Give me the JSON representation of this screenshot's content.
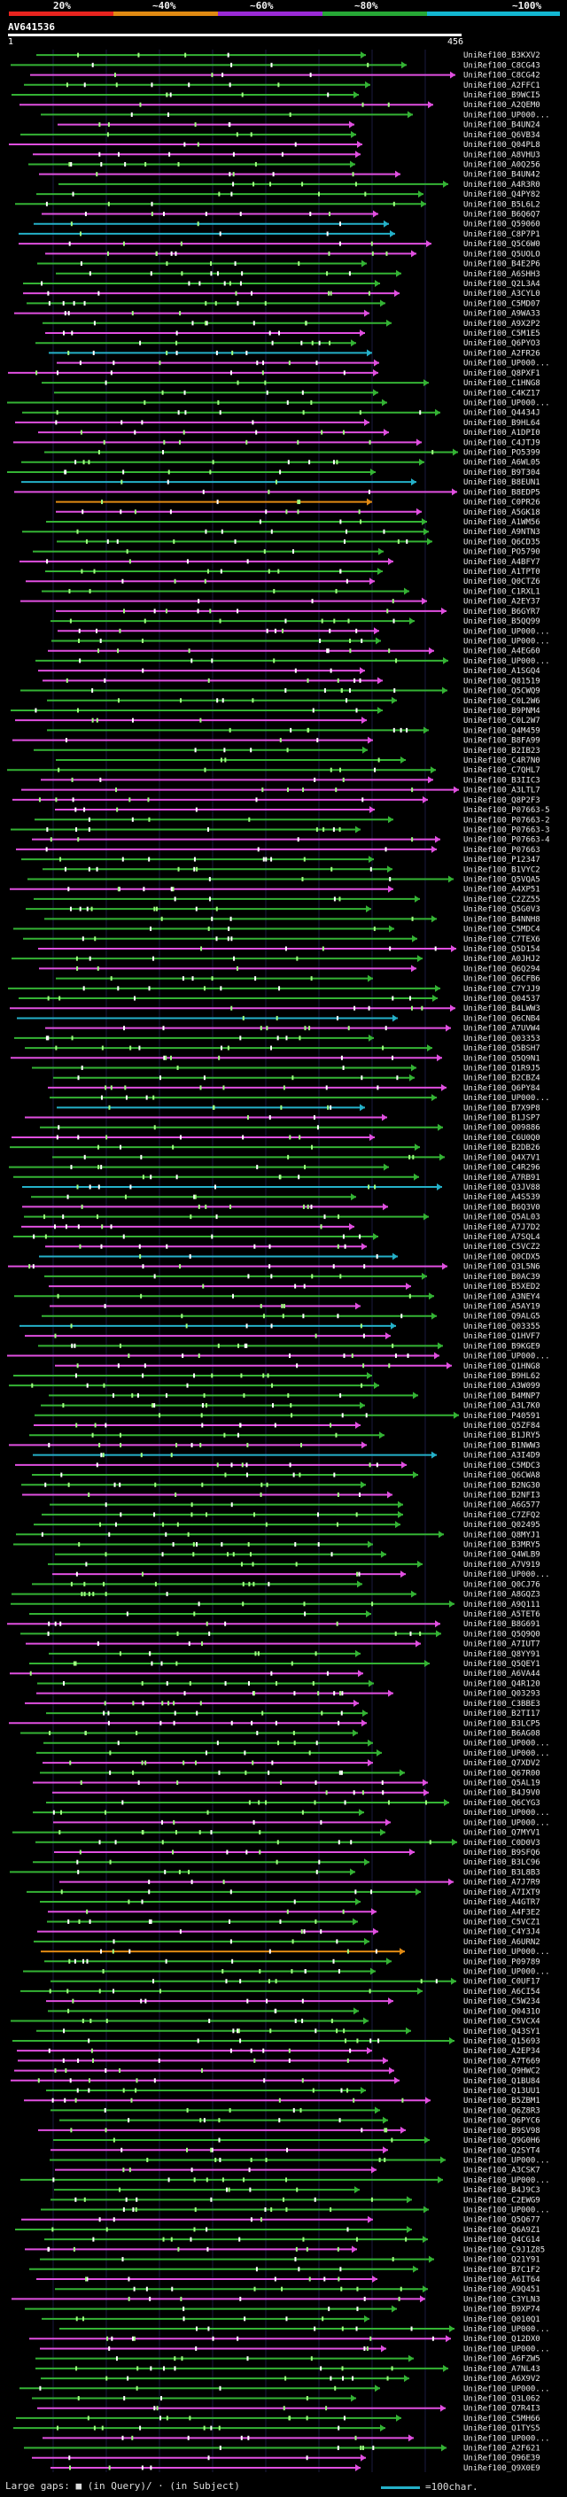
{
  "legend": {
    "ticks": [
      "20%",
      "~40%",
      "~60%",
      "~80%",
      "~100%"
    ],
    "colors": [
      "#e8241f",
      "#e08a13",
      "#9a2ad6",
      "#27a836",
      "#13b7d2"
    ]
  },
  "query": {
    "name": "AV641536",
    "start": "1",
    "end": "456"
  },
  "colors": {
    "pink": "#e04fe0",
    "green": "#34b334",
    "cyan": "#24b0c8",
    "orange": "#e08a13",
    "light_green": "#a0ff80",
    "white": "#ffffff"
  },
  "hits": [
    "UniRef100_B3KXV2",
    "UniRef100_C8CG43",
    "UniRef100_C8CG42",
    "UniRef100_A2FFC1",
    "UniRef100_B9WCI5",
    "UniRef100_A2QEM0",
    "UniRef100_UP000...",
    "UniRef100_B4UN24",
    "UniRef100_Q6VB34",
    "UniRef100_Q04PL8",
    "UniRef100_A8VHU3",
    "UniRef100_A0Q256",
    "UniRef100_B4UN42",
    "UniRef100_A4R3R0",
    "UniRef100_Q4PY82",
    "UniRef100_B5L6L2",
    "UniRef100_B6Q6Q7",
    "UniRef100_Q59060",
    "UniRef100_C8P7P1",
    "UniRef100_Q5C6W0",
    "UniRef100_Q5UOLO",
    "UniRef100_B4E2P6",
    "UniRef100_A6SHH3",
    "UniRef100_Q2L3A4",
    "UniRef100_A3CYL0",
    "UniRef100_C5MD07",
    "UniRef100_A9WA33",
    "UniRef100_A9X2P2",
    "UniRef100_C5M1E5",
    "UniRef100_Q6PYO3",
    "UniRef100_A2FR26",
    "UniRef100_UP000...",
    "UniRef100_Q8PXF1",
    "UniRef100_C1HNG8",
    "UniRef100_C4KZ17",
    "UniRef100_UP000...",
    "UniRef100_Q4434J",
    "UniRef100_B9HL64",
    "UniRef100_A1DPI0",
    "UniRef100_C4JTJ9",
    "UniRef100_PO5399",
    "UniRef100_A6WL05",
    "UniRef100_B9T304",
    "UniRef100_B8EUN1",
    "UniRef100_B8EDP5",
    "UniRef100_C0PR26",
    "UniRef100_A5GK18",
    "UniRef100_A1WM56",
    "UniRef100_A9NTN3",
    "UniRef100_Q6CD35",
    "UniRef100_PO5790",
    "UniRef100_A4BFY7",
    "UniRef100_A1TPT0",
    "UniRef100_Q0CTZ6",
    "UniRef100_C1RXL1",
    "UniRef100_A2EY37",
    "UniRef100_B6GYR7",
    "UniRef100_B5QQ99",
    "UniRef100_UP000...",
    "UniRef100_UP000...",
    "UniRef100_A4EG60",
    "UniRef100_UP000...",
    "UniRef100_A1SGQ4",
    "UniRef100_Q81519",
    "UniRef100_Q5CWQ9",
    "UniRef100_C0L2W6",
    "UniRef100_B9PNM4",
    "UniRef100_C0L2W7",
    "UniRef100_Q4M459",
    "UniRef100_B8FA99",
    "UniRef100_B2IB23",
    "UniRef100_C4R7N0",
    "UniRef100_C7QHL7",
    "UniRef100_B3IIC3",
    "UniRef100_A3LTL7",
    "UniRef100_Q8P2F3",
    "UniRef100_P07663-5",
    "UniRef100_P07663-2",
    "UniRef100_P07663-3",
    "UniRef100_P07663-4",
    "UniRef100_P07663",
    "UniRef100_P12347",
    "UniRef100_B1VYC2",
    "UniRef100_Q5VQA5",
    "UniRef100_A4XP51",
    "UniRef100_C2ZZ55",
    "UniRef100_Q5G0V3",
    "UniRef100_B4NNH8",
    "UniRef100_C5MDC4",
    "UniRef100_C7TEX6",
    "UniRef100_Q5D154",
    "UniRef100_A0JHJ2",
    "UniRef100_Q6Q294",
    "UniRef100_Q6CFB6",
    "UniRef100_C7YJJ9",
    "UniRef100_Q04537",
    "UniRef100_B4LWW3",
    "UniRef100_Q6CNB4",
    "UniRef100_A7UVW4",
    "UniRef100_Q03353",
    "UniRef100_Q5BSH7",
    "UniRef100_Q5Q9N1",
    "UniRef100_Q1R9J5",
    "UniRef100_B2CBZ4",
    "UniRef100_Q6PY84",
    "UniRef100_UP000...",
    "UniRef100_B7X9P8",
    "UniRef100_B1JSP7",
    "UniRef100_Q09886",
    "UniRef100_C6U0Q0",
    "UniRef100_B2DB26",
    "UniRef100_Q4X7V1",
    "UniRef100_C4R296",
    "UniRef100_A7RB91",
    "UniRef100_Q3JV88",
    "UniRef100_A4S539",
    "UniRef100_B6Q3V0",
    "UniRef100_Q5AL03",
    "UniRef100_A7J7D2",
    "UniRef100_A7SQL4",
    "UniRef100_C5VCZ2",
    "UniRef100_Q0CDX5",
    "UniRef100_Q3L5N6",
    "UniRef100_B0AC39",
    "UniRef100_B5XED2",
    "UniRef100_A3NEY4",
    "UniRef100_A5AY19",
    "UniRef100_Q9ALG5",
    "UniRef100_Q03355",
    "UniRef100_Q1HVF7",
    "UniRef100_B9KGE9",
    "UniRef100_UP000...",
    "UniRef100_Q1HNG8",
    "UniRef100_B9HL62",
    "UniRef100_A3W099",
    "UniRef100_B4MNP7",
    "UniRef100_A3L7K0",
    "UniRef100_P40591",
    "UniRef100_Q5ZF84",
    "UniRef100_B1JRY5",
    "UniRef100_B1NWW3",
    "UniRef100_A3I4D9",
    "UniRef100_C5MDC3",
    "UniRef100_Q6CWA8",
    "UniRef100_B2NG30",
    "UniRef100_B2NFI3",
    "UniRef100_A6G577",
    "UniRef100_C7ZFQ2",
    "UniRef100_Q02495",
    "UniRef100_Q8MYJ1",
    "UniRef100_B3MRY5",
    "UniRef100_Q4WLB9",
    "UniRef100_A7V919",
    "UniRef100_UP000...",
    "UniRef100_Q0CJ76",
    "UniRef100_A8GQZ3",
    "UniRef100_A9Q111",
    "UniRef100_A5TET6",
    "UniRef100_B8G691",
    "UniRef100_Q5Q9Q0",
    "UniRef100_A7IUT7",
    "UniRef100_Q8YY91",
    "UniRef100_Q5QEY1",
    "UniRef100_A6VA44",
    "UniRef100_Q4R120",
    "UniRef100_Q03293",
    "UniRef100_C3BBE3",
    "UniRef100_B2TI17",
    "UniRef100_B3LCP5",
    "UniRef100_B6AG08",
    "UniRef100_UP000...",
    "UniRef100_UP000...",
    "UniRef100_Q7XDV2",
    "UniRef100_Q67R00",
    "UniRef100_Q5AL19",
    "UniRef100_B4J9V0",
    "UniRef100_Q6CYG3",
    "UniRef100_UP000...",
    "UniRef100_UP000...",
    "UniRef100_Q7MYV1",
    "UniRef100_C0D0V3",
    "UniRef100_B9SFQ6",
    "UniRef100_B3LC96",
    "UniRef100_B3L8B3",
    "UniRef100_A7J7R9",
    "UniRef100_A7IXT9",
    "UniRef100_A4GTR7",
    "UniRef100_A4F3E2",
    "UniRef100_C5VCZ1",
    "UniRef100_C4Y3J4",
    "UniRef100_A6URN2",
    "UniRef100_UP000...",
    "UniRef100_P09789",
    "UniRef100_UP000...",
    "UniRef100_C0UF17",
    "UniRef100_A6CI54",
    "UniRef100_C5W234",
    "UniRef100_Q0431O",
    "UniRef100_C5VCX4",
    "UniRef100_Q43SY1",
    "UniRef100_Q15693",
    "UniRef100_A2EP34",
    "UniRef100_A7T669",
    "UniRef100_Q9HWC2",
    "UniRef100_Q1BU84",
    "UniRef100_Q13UU1",
    "UniRef100_B5ZBM1",
    "UniRef100_Q6Z8R3",
    "UniRef100_Q6PYC6",
    "UniRef100_B9SV98",
    "UniRef100_Q9G0H6",
    "UniRef100_Q2SYT4",
    "UniRef100_UP000...",
    "UniRef100_A3CSK7",
    "UniRef100_UP000...",
    "UniRef100_B4J9C3",
    "UniRef100_C2EWG9",
    "UniRef100_UP000...",
    "UniRef100_Q5Q677",
    "UniRef100_Q6A9Z1",
    "UniRef100_Q4CG14",
    "UniRef100_C9J1Z85",
    "UniRef100_Q21Y91",
    "UniRef100_B7C1F2",
    "UniRef100_A6IT64",
    "UniRef100_A9Q451",
    "UniRef100_C3YLN3",
    "UniRef100_B9XP74",
    "UniRef100_Q010Q1",
    "UniRef100_UP000...",
    "UniRef100_Q12DX0",
    "UniRef100_UP000...",
    "UniRef100_A6FZW5",
    "UniRef100_A7NL43",
    "UniRef100_A6X9V2",
    "UniRef100_UP000...",
    "UniRef100_Q3L062",
    "UniRef100_Q7R4I3",
    "UniRef100_C5MH66",
    "UniRef100_Q1TYS5",
    "UniRef100_UP000...",
    "UniRef100_A2F621",
    "UniRef100_Q96E39",
    "UniRef100_Q9X0E9"
  ],
  "footer": {
    "gaps_label": "Large gaps: ■ (in Query)/ · (in Subject)",
    "scale_label": "=100char."
  }
}
